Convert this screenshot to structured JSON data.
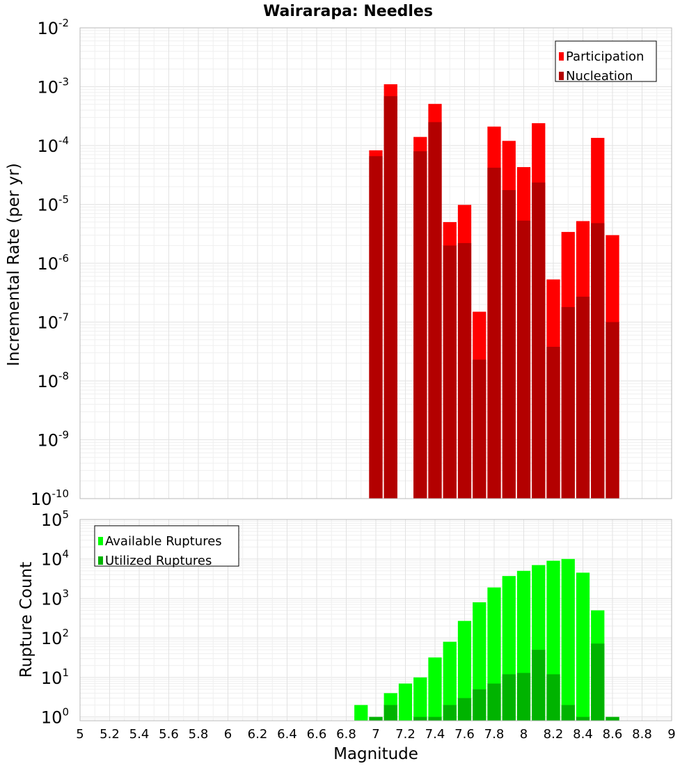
{
  "chart_data": [
    {
      "type": "bar",
      "title": "Wairarapa: Needles",
      "xlabel": "",
      "ylabel": "Incremental Rate (per yr)",
      "yscale": "log",
      "ylim": [
        1e-10,
        0.01
      ],
      "xlim": [
        5,
        9
      ],
      "grid": true,
      "legend_position": "top-right",
      "yticks": [
        {
          "base": "10",
          "exp": "-10",
          "value": 1e-10
        },
        {
          "base": "10",
          "exp": "-9",
          "value": 1e-09
        },
        {
          "base": "10",
          "exp": "-8",
          "value": 1e-08
        },
        {
          "base": "10",
          "exp": "-7",
          "value": 1e-07
        },
        {
          "base": "10",
          "exp": "-6",
          "value": 1e-06
        },
        {
          "base": "10",
          "exp": "-5",
          "value": 1e-05
        },
        {
          "base": "10",
          "exp": "-4",
          "value": 0.0001
        },
        {
          "base": "10",
          "exp": "-3",
          "value": 0.001
        },
        {
          "base": "10",
          "exp": "-2",
          "value": 0.01
        }
      ],
      "x": [
        7.0,
        7.1,
        7.3,
        7.4,
        7.5,
        7.6,
        7.7,
        7.8,
        7.9,
        8.0,
        8.1,
        8.2,
        8.3,
        8.4,
        8.5,
        8.6
      ],
      "series": [
        {
          "name": "Participation",
          "color": "#ff0000",
          "values": [
            8.3e-05,
            0.0011,
            0.00014,
            0.00051,
            5e-06,
            9.8e-06,
            1.5e-07,
            0.00021,
            0.00012,
            4.3e-05,
            0.00024,
            5.3e-07,
            3.4e-06,
            5.2e-06,
            0.000135,
            3e-06
          ]
        },
        {
          "name": "Nucleation",
          "color": "#b30000",
          "values": [
            6.6e-05,
            0.00069,
            8e-05,
            0.00025,
            2e-06,
            2.2e-06,
            2.3e-08,
            4.2e-05,
            1.75e-05,
            5.3e-06,
            2.35e-05,
            3.8e-08,
            1.8e-07,
            2.7e-07,
            4.8e-06,
            1e-07
          ]
        }
      ]
    },
    {
      "type": "bar",
      "title": "",
      "xlabel": "Magnitude",
      "ylabel": "Rupture Count",
      "yscale": "log",
      "ylim": [
        0.8,
        100000
      ],
      "xlim": [
        5,
        9
      ],
      "grid": true,
      "legend_position": "top-left",
      "yticks": [
        {
          "base": "10",
          "exp": "0",
          "value": 1
        },
        {
          "base": "10",
          "exp": "1",
          "value": 10
        },
        {
          "base": "10",
          "exp": "2",
          "value": 100
        },
        {
          "base": "10",
          "exp": "3",
          "value": 1000
        },
        {
          "base": "10",
          "exp": "4",
          "value": 10000
        },
        {
          "base": "10",
          "exp": "5",
          "value": 100000
        }
      ],
      "xticks": [
        "5",
        "5.2",
        "5.4",
        "5.6",
        "5.8",
        "6",
        "6.2",
        "6.4",
        "6.6",
        "6.8",
        "7",
        "7.2",
        "7.4",
        "7.6",
        "7.8",
        "8",
        "8.2",
        "8.4",
        "8.6",
        "8.8",
        "9"
      ],
      "x": [
        6.9,
        7.0,
        7.1,
        7.2,
        7.3,
        7.4,
        7.5,
        7.6,
        7.7,
        7.8,
        7.9,
        8.0,
        8.1,
        8.2,
        8.3,
        8.4,
        8.5,
        8.6
      ],
      "series": [
        {
          "name": "Available Ruptures",
          "color": "#00ff00",
          "values": [
            2,
            1,
            4,
            7,
            10,
            32,
            80,
            270,
            800,
            1900,
            3700,
            5000,
            7000,
            9000,
            10000,
            4500,
            500,
            1
          ]
        },
        {
          "name": "Utilized Ruptures",
          "color": "#00b300",
          "values": [
            0,
            1,
            2,
            0,
            1,
            1,
            2,
            3,
            5,
            7,
            12,
            13,
            50,
            12,
            2,
            1,
            72,
            1
          ]
        }
      ]
    }
  ]
}
